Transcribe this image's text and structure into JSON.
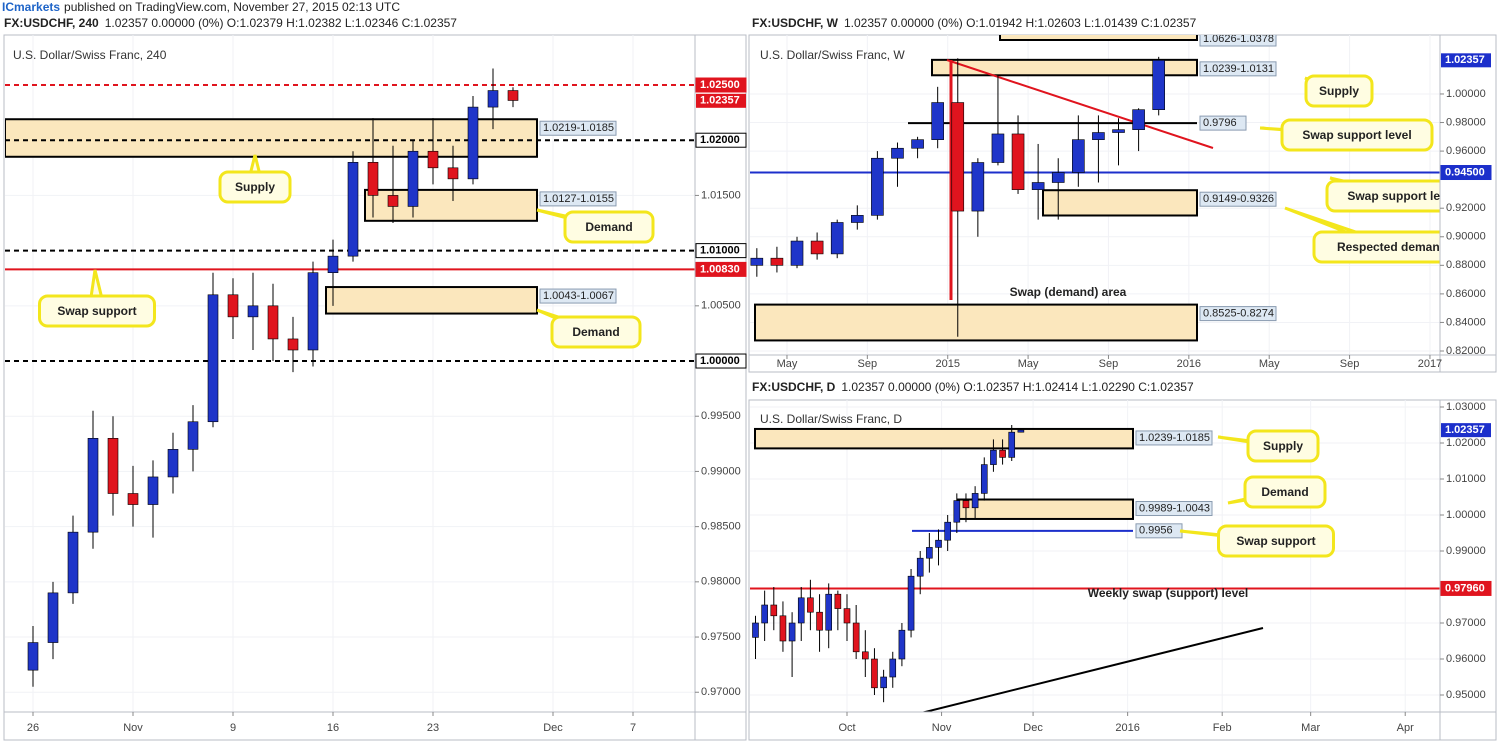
{
  "header": {
    "publisher": "ICmarkets",
    "published": "published on TradingView.com, November 27, 2015 02:13 UTC"
  },
  "chart_data": [
    {
      "type": "candlestick",
      "symbol": "FX:USDCHF, 240",
      "quote": "1.02357 0.00000 (0%) O:1.02379 H:1.02382 L:1.02346 C:1.02357",
      "title": "U.S. Dollar/Swiss Franc, 240",
      "up_color": "#1f35c9",
      "down_color": "#e0141e",
      "x": [
        0,
        1,
        2,
        3,
        4,
        5,
        6,
        7,
        8,
        9,
        10,
        11,
        12,
        13,
        14,
        15,
        16,
        17,
        18,
        19,
        20,
        21,
        22,
        23,
        24
      ],
      "open": [
        0.972,
        0.9745,
        0.979,
        0.9845,
        0.993,
        0.988,
        0.987,
        0.9895,
        0.992,
        0.9945,
        1.006,
        1.004,
        1.005,
        1.002,
        1.001,
        1.008,
        1.0095,
        1.018,
        1.015,
        1.014,
        1.019,
        1.0175,
        1.0165,
        1.023,
        1.0245
      ],
      "high": [
        0.976,
        0.98,
        0.986,
        0.9955,
        0.995,
        0.9905,
        0.991,
        0.9935,
        0.996,
        1.008,
        1.0075,
        1.008,
        1.007,
        1.004,
        1.009,
        1.011,
        1.019,
        1.022,
        1.0195,
        1.02,
        1.022,
        1.0195,
        1.024,
        1.0265,
        1.0248
      ],
      "low": [
        0.9705,
        0.973,
        0.978,
        0.983,
        0.986,
        0.985,
        0.984,
        0.988,
        0.99,
        0.994,
        1.002,
        1.001,
        1.0,
        0.999,
        0.9995,
        1.005,
        1.009,
        1.013,
        1.0125,
        1.013,
        1.016,
        1.0145,
        1.016,
        1.021,
        1.023
      ],
      "close": [
        0.9745,
        0.979,
        0.9845,
        0.993,
        0.988,
        0.987,
        0.9895,
        0.992,
        0.9945,
        1.006,
        1.004,
        1.005,
        1.002,
        1.001,
        1.008,
        1.0095,
        1.018,
        1.015,
        1.014,
        1.019,
        1.0175,
        1.0165,
        1.023,
        1.0245,
        1.0236
      ],
      "xlim": [
        -1.4,
        33.1
      ],
      "ylim": [
        0.96821,
        1.02953
      ],
      "xticks": [
        {
          "value": 0,
          "label": "26"
        },
        {
          "value": 5,
          "label": "Nov"
        },
        {
          "value": 10,
          "label": "9"
        },
        {
          "value": 15,
          "label": "16"
        },
        {
          "value": 20,
          "label": "23"
        },
        {
          "value": 26,
          "label": "Dec"
        },
        {
          "value": 30,
          "label": "7"
        }
      ],
      "yticks": [
        {
          "value": 1.015,
          "label": "1.01500"
        },
        {
          "value": 1.005,
          "label": "1.00500"
        },
        {
          "value": 0.995,
          "label": "0.99500"
        },
        {
          "value": 0.99,
          "label": "0.99000"
        },
        {
          "value": 0.985,
          "label": "0.98500"
        },
        {
          "value": 0.98,
          "label": "0.98000"
        },
        {
          "value": 0.975,
          "label": "0.97500"
        },
        {
          "value": 0.97,
          "label": "0.97000"
        }
      ],
      "levels": [
        {
          "value": 1.025,
          "label": "1.02500",
          "color": "#e0141e",
          "dash": true,
          "tag": "axis"
        },
        {
          "value": 1.02,
          "label": "1.02000",
          "color": "#000000",
          "dash": true,
          "tag": "axis"
        },
        {
          "value": 1.01,
          "label": "1.01000",
          "color": "#000000",
          "dash": true,
          "tag": "axis"
        },
        {
          "value": 1.0083,
          "label": "1.00830",
          "color": "#e0141e",
          "dash": false,
          "tag": "axis"
        },
        {
          "value": 1.0,
          "label": "1.00000",
          "color": "#000000",
          "dash": true,
          "tag": "axis"
        }
      ],
      "zones": [
        {
          "low": 1.0185,
          "high": 1.0219,
          "label": "1.0219-1.0185"
        },
        {
          "low": 1.0127,
          "high": 1.0155,
          "label": "1.0127-1.0155"
        },
        {
          "low": 1.0043,
          "high": 1.0067,
          "label": "1.0043-1.0067"
        }
      ],
      "annotations": [
        "Supply",
        "Demand",
        "Swap support",
        "Demand"
      ],
      "last": {
        "value": 1.02357,
        "label": "1.02357",
        "color": "#e0141e"
      }
    },
    {
      "type": "candlestick",
      "symbol": "FX:USDCHF, W",
      "quote": "1.02357 0.00000 (0%) O:1.01942 H:1.02603 L:1.01439 C:1.02357",
      "title": "U.S. Dollar/Swiss Franc, W",
      "up_color": "#1f35c9",
      "down_color": "#e0141e",
      "x": [
        2.5,
        3.5,
        4.5,
        5.5,
        6.5,
        7.5,
        8.5,
        9.5,
        10.5,
        11.5,
        12.5,
        13.5,
        14.5,
        15.5,
        16.5,
        17.5,
        18.5,
        19.5,
        20.5,
        21.5,
        22.5
      ],
      "open": [
        0.88,
        0.885,
        0.88,
        0.897,
        0.888,
        0.91,
        0.915,
        0.955,
        0.962,
        0.968,
        0.994,
        0.918,
        0.952,
        0.972,
        0.933,
        0.938,
        0.945,
        0.968,
        0.973,
        0.975,
        0.989
      ],
      "high": [
        0.892,
        0.893,
        0.9,
        0.903,
        0.912,
        0.922,
        0.96,
        0.966,
        0.97,
        1.005,
        1.025,
        0.955,
        1.013,
        0.985,
        0.965,
        0.955,
        0.985,
        0.985,
        0.983,
        0.99,
        1.026
      ],
      "low": [
        0.872,
        0.875,
        0.878,
        0.884,
        0.885,
        0.905,
        0.912,
        0.935,
        0.955,
        0.962,
        0.83,
        0.9,
        0.95,
        0.93,
        0.912,
        0.912,
        0.935,
        0.938,
        0.95,
        0.96,
        0.985
      ],
      "close": [
        0.885,
        0.88,
        0.897,
        0.888,
        0.91,
        0.915,
        0.955,
        0.962,
        0.968,
        0.994,
        0.918,
        0.952,
        0.972,
        0.933,
        0.938,
        0.945,
        0.968,
        0.973,
        0.975,
        0.989,
        1.0236
      ],
      "xlim": [
        2.16,
        36.5
      ],
      "ylim": [
        0.8172,
        1.0413
      ],
      "xticks": [
        {
          "value": 4,
          "label": "May"
        },
        {
          "value": 8,
          "label": "Sep"
        },
        {
          "value": 12,
          "label": "2015"
        },
        {
          "value": 16,
          "label": "May"
        },
        {
          "value": 20,
          "label": "Sep"
        },
        {
          "value": 24,
          "label": "2016"
        },
        {
          "value": 28,
          "label": "May"
        },
        {
          "value": 32,
          "label": "Sep"
        },
        {
          "value": 36,
          "label": "2017"
        }
      ],
      "yticks": [
        {
          "value": 1.0,
          "label": "1.00000"
        },
        {
          "value": 0.98,
          "label": "0.98000"
        },
        {
          "value": 0.96,
          "label": "0.96000"
        },
        {
          "value": 0.92,
          "label": "0.92000"
        },
        {
          "value": 0.9,
          "label": "0.90000"
        },
        {
          "value": 0.88,
          "label": "0.88000"
        },
        {
          "value": 0.86,
          "label": "0.86000"
        },
        {
          "value": 0.84,
          "label": "0.84000"
        },
        {
          "value": 0.82,
          "label": "0.82000"
        }
      ],
      "levels": [
        {
          "value": 0.9796,
          "label": "0.9796",
          "color": "#000000",
          "dash": false,
          "tag": "box"
        },
        {
          "value": 0.945,
          "label": "0.94500",
          "color": "#1c2fcb",
          "dash": false,
          "tag": "axis"
        }
      ],
      "zones": [
        {
          "low": 1.0378,
          "high": 1.0626,
          "label": "1.0626-1.0378"
        },
        {
          "low": 1.0131,
          "high": 1.0239,
          "label": "1.0239-1.0131"
        },
        {
          "low": 0.9149,
          "high": 0.9326,
          "label": "0.9149-0.9326"
        },
        {
          "low": 0.8274,
          "high": 0.8525,
          "label": "0.8525-0.8274"
        }
      ],
      "annotations": [
        "Supply",
        "Swap support level",
        "Swap support level",
        "Respected demand",
        "Swap (demand) area"
      ],
      "last": {
        "value": 1.02357,
        "label": "1.02357",
        "color": "#1c2fcb"
      }
    },
    {
      "type": "candlestick",
      "symbol": "FX:USDCHF, D",
      "quote": "1.02357 0.00000 (0%) O:1.02357 H:1.02414 L:1.02290 C:1.02357",
      "title": "U.S. Dollar/Swiss Franc, D",
      "up_color": "#1f35c9",
      "down_color": "#e0141e",
      "x": [
        -30,
        -27,
        -24,
        -21,
        -18,
        -15,
        -12,
        -9,
        -6,
        -3,
        0,
        3,
        6,
        9,
        12,
        15,
        18,
        21,
        24,
        27,
        30,
        33,
        36,
        39,
        42,
        45,
        48,
        51,
        54,
        57
      ],
      "open": [
        0.966,
        0.97,
        0.975,
        0.972,
        0.965,
        0.97,
        0.977,
        0.973,
        0.968,
        0.978,
        0.974,
        0.97,
        0.962,
        0.96,
        0.952,
        0.955,
        0.96,
        0.968,
        0.983,
        0.988,
        0.991,
        0.993,
        0.998,
        1.004,
        1.002,
        1.006,
        1.014,
        1.018,
        1.016,
        1.023
      ],
      "high": [
        0.972,
        0.979,
        0.98,
        0.976,
        0.973,
        0.98,
        0.982,
        0.978,
        0.981,
        0.979,
        0.978,
        0.975,
        0.968,
        0.963,
        0.957,
        0.962,
        0.97,
        0.985,
        0.99,
        0.995,
        0.996,
        1.0,
        1.006,
        1.006,
        1.008,
        1.016,
        1.021,
        1.021,
        1.025,
        1.0241
      ],
      "low": [
        0.96,
        0.965,
        0.968,
        0.962,
        0.955,
        0.965,
        0.968,
        0.962,
        0.963,
        0.968,
        0.965,
        0.96,
        0.955,
        0.95,
        0.948,
        0.952,
        0.958,
        0.966,
        0.978,
        0.984,
        0.986,
        0.99,
        0.995,
        0.998,
        0.999,
        1.004,
        1.012,
        1.014,
        1.015,
        1.0229
      ],
      "close": [
        0.97,
        0.975,
        0.972,
        0.965,
        0.97,
        0.977,
        0.973,
        0.968,
        0.978,
        0.974,
        0.97,
        0.962,
        0.96,
        0.952,
        0.955,
        0.96,
        0.968,
        0.983,
        0.988,
        0.991,
        0.993,
        0.998,
        1.004,
        1.002,
        1.006,
        1.014,
        1.018,
        1.016,
        1.023,
        1.0236
      ],
      "xlim": [
        -31.8,
        194.4
      ],
      "ylim": [
        0.94528,
        1.03194
      ],
      "xticks": [
        {
          "value": 0,
          "label": "Oct"
        },
        {
          "value": 31,
          "label": "Nov"
        },
        {
          "value": 61,
          "label": "Dec"
        },
        {
          "value": 92,
          "label": "2016"
        },
        {
          "value": 123,
          "label": "Feb"
        },
        {
          "value": 152,
          "label": "Mar"
        },
        {
          "value": 183,
          "label": "Apr"
        }
      ],
      "yticks": [
        {
          "value": 1.03,
          "label": "1.03000"
        },
        {
          "value": 1.02,
          "label": "1.02000"
        },
        {
          "value": 1.01,
          "label": "1.01000"
        },
        {
          "value": 1.0,
          "label": "1.00000"
        },
        {
          "value": 0.99,
          "label": "0.99000"
        },
        {
          "value": 0.97,
          "label": "0.97000"
        },
        {
          "value": 0.96,
          "label": "0.96000"
        },
        {
          "value": 0.95,
          "label": "0.95000"
        }
      ],
      "levels": [
        {
          "value": 0.9956,
          "label": "0.9956",
          "color": "#1c2fcb",
          "dash": false,
          "tag": "box"
        },
        {
          "value": 0.9796,
          "label": "0.97960",
          "color": "#e0141e",
          "dash": false,
          "tag": "axis"
        }
      ],
      "zones": [
        {
          "low": 1.0185,
          "high": 1.0239,
          "label": "1.0239-1.0185"
        },
        {
          "low": 0.9989,
          "high": 1.0043,
          "label": "0.9989-1.0043"
        }
      ],
      "annotations": [
        "Supply",
        "Demand",
        "Swap support",
        "Weekly swap (support) level"
      ],
      "last": {
        "value": 1.02357,
        "label": "1.02357",
        "color": "#1c2fcb"
      }
    }
  ]
}
